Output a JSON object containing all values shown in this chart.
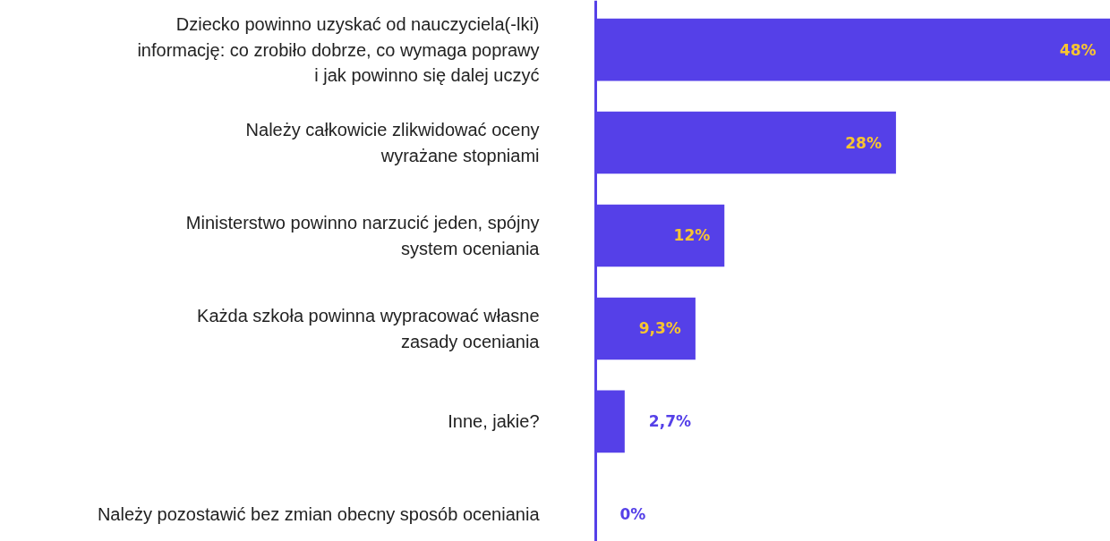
{
  "chart_data": {
    "type": "bar",
    "orientation": "horizontal",
    "categories": [
      "Dziecko powinno uzyskać od nauczyciela(-lki)\ninformację: co zrobiło dobrze, co wymaga poprawy\ni jak powinno się dalej uczyć",
      "Należy całkowicie zlikwidować oceny\nwyrażane stopniami",
      "Ministerstwo powinno narzucić jeden, spójny\nsystem oceniania",
      "Każda szkoła powinna wypracować własne\nzasady oceniania",
      "Inne, jakie?",
      "Należy pozostawić bez zmian obecny sposób oceniania"
    ],
    "values": [
      48,
      28,
      12,
      9.3,
      2.7,
      0
    ],
    "value_labels": [
      "48%",
      "28%",
      "12%",
      "9,3%",
      "2,7%",
      "0%"
    ],
    "color": "#5540e8",
    "grid": false
  }
}
